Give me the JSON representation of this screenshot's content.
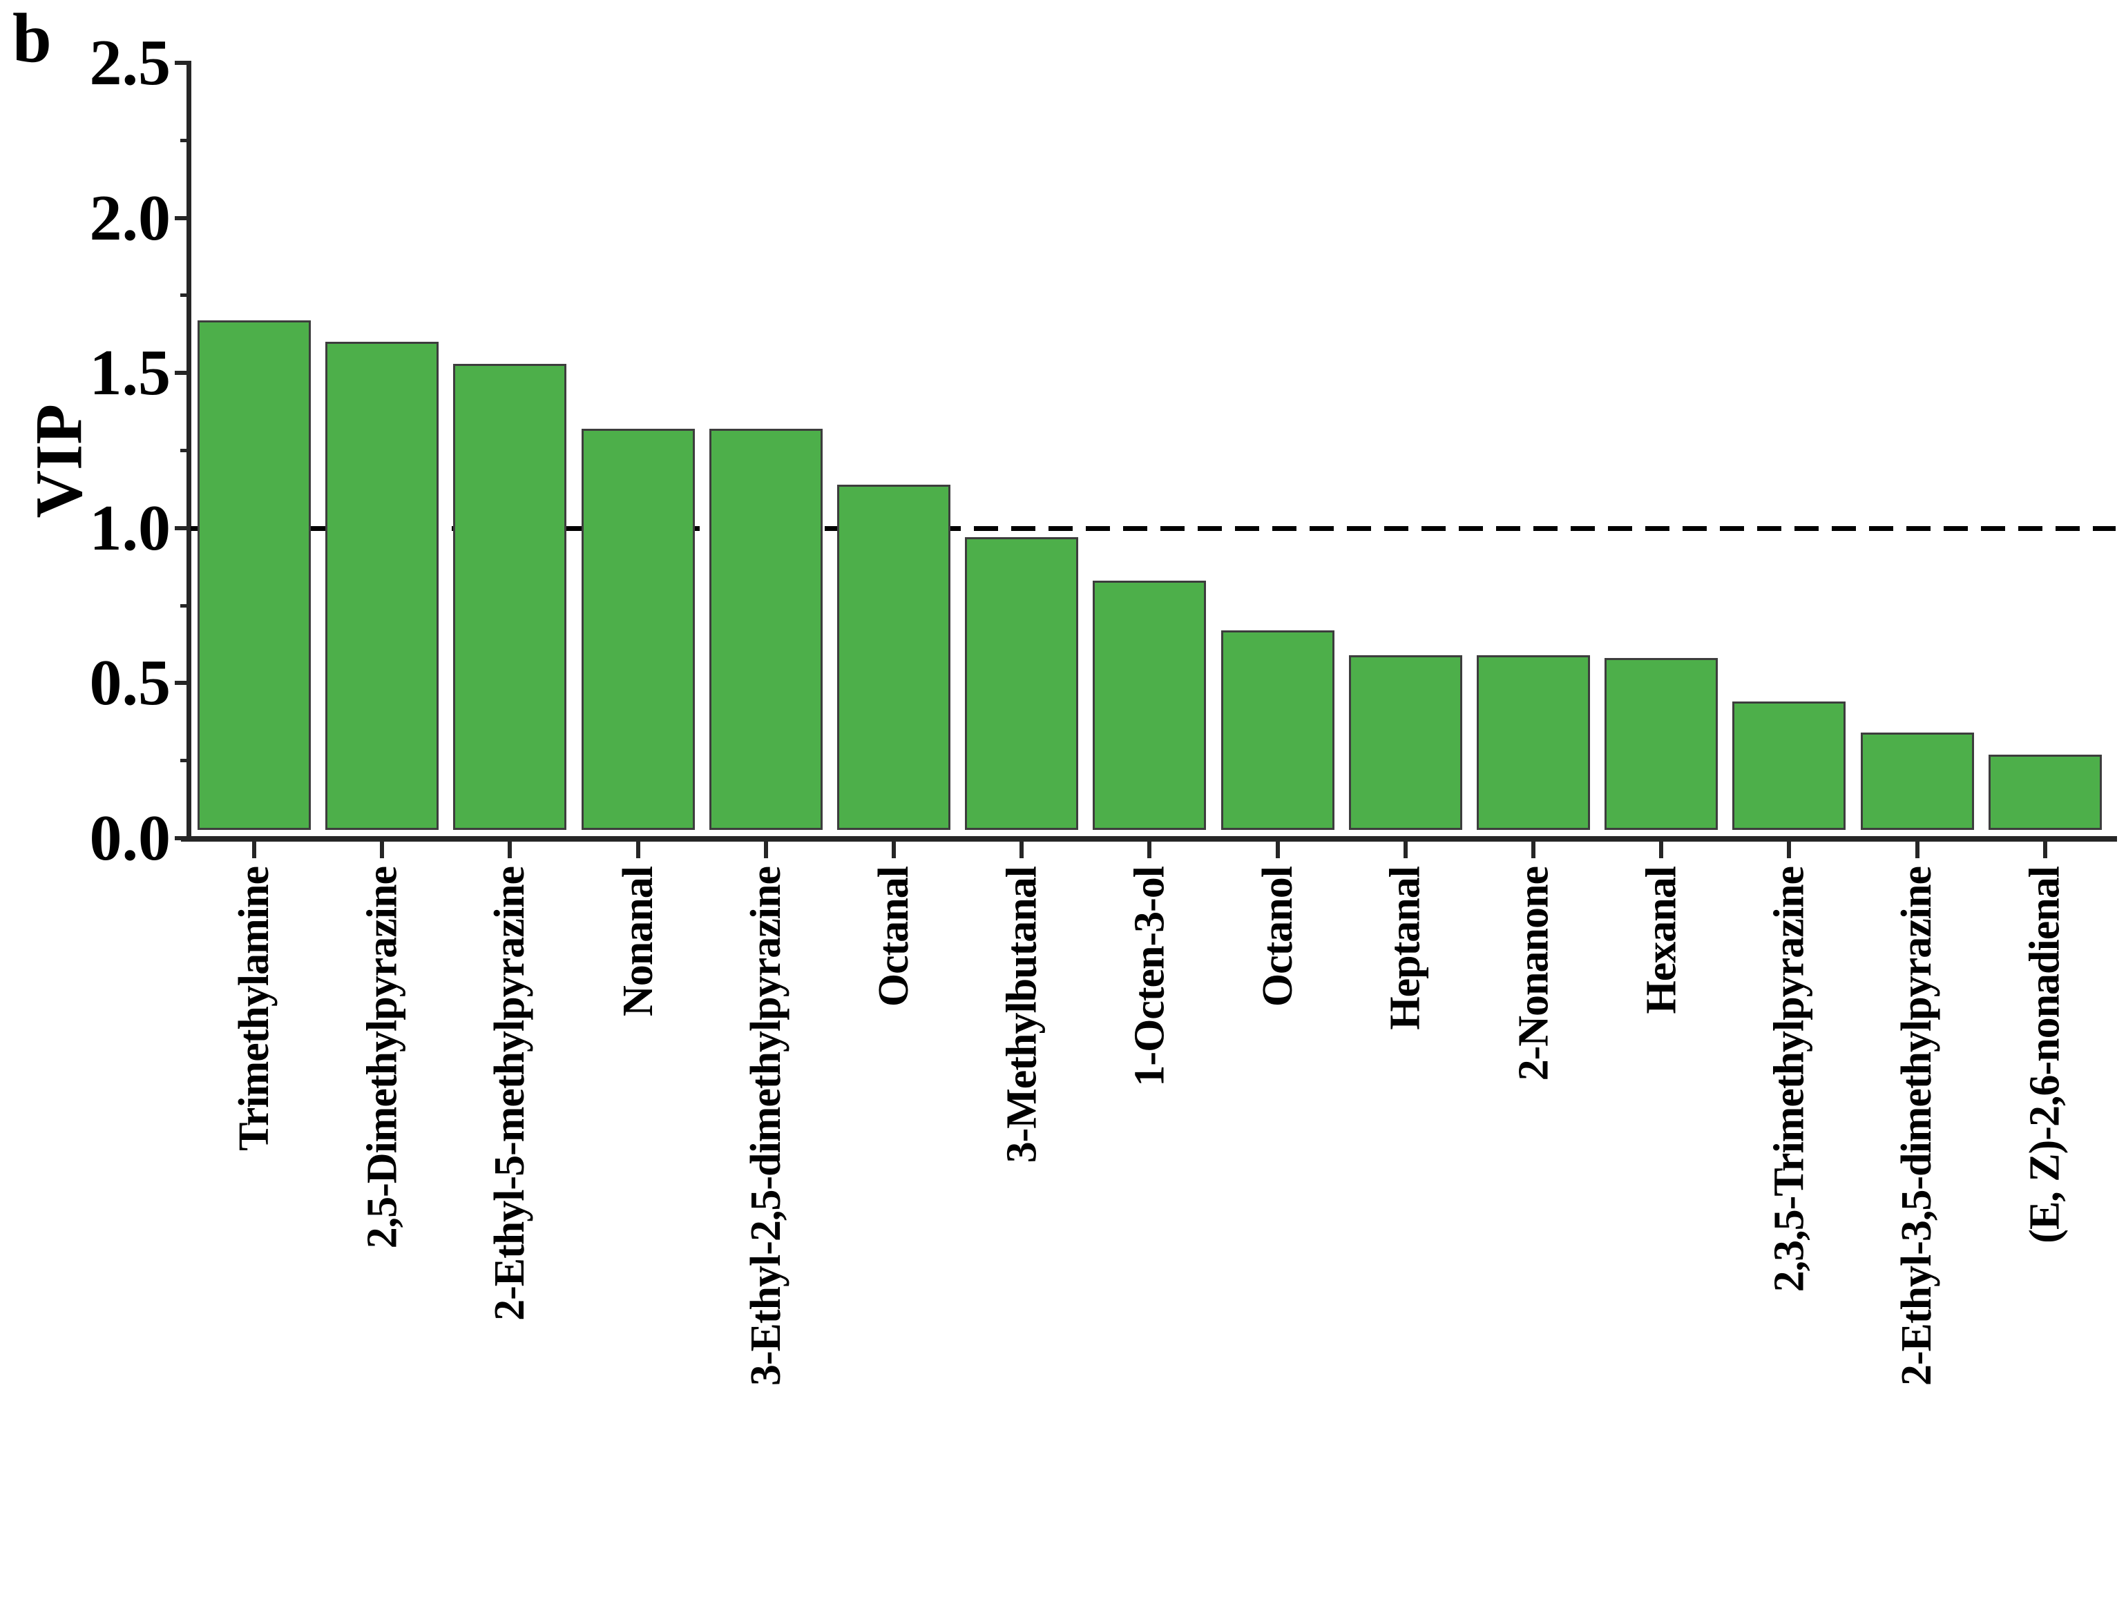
{
  "panel_label": "b",
  "colors": {
    "bar_fill": "#4daf4a",
    "bar_edge": "#3d3d3d",
    "axis": "#262626",
    "dashed_line": "#000000",
    "background": "#ffffff"
  },
  "chart_data": {
    "type": "bar",
    "title": "",
    "xlabel": "",
    "ylabel": "VIP",
    "ylim": [
      0.0,
      2.5
    ],
    "grid": false,
    "legend_position": "none",
    "reference_line": {
      "y": 1.0,
      "style": "dashed",
      "color": "#000000"
    },
    "yticks_major": [
      0.0,
      0.5,
      1.0,
      1.5,
      2.0,
      2.5
    ],
    "ytick_labels": [
      "0.0",
      "0.5",
      "1.0",
      "1.5",
      "2.0",
      "2.5"
    ],
    "yticks_minor": [
      0.25,
      0.75,
      1.25,
      1.75,
      2.25
    ],
    "categories": [
      "Trimethylamine",
      "2,5-Dimethylpyrazine",
      "2-Ethyl-5-methylpyrazine",
      "Nonanal",
      "3-Ethyl-2,5-dimethylpyrazine",
      "Octanal",
      "3-Methylbutanal",
      "1-Octen-3-ol",
      "Octanol",
      "Heptanal",
      "2-Nonanone",
      "Hexanal",
      "2,3,5-Trimethylpyrazine",
      "2-Ethyl-3,5-dimethylpyrazine",
      "(E, Z)-2,6-nonadienal"
    ],
    "values": [
      1.67,
      1.6,
      1.53,
      1.32,
      1.32,
      1.14,
      0.97,
      0.83,
      0.67,
      0.59,
      0.59,
      0.58,
      0.44,
      0.34,
      0.27
    ]
  }
}
